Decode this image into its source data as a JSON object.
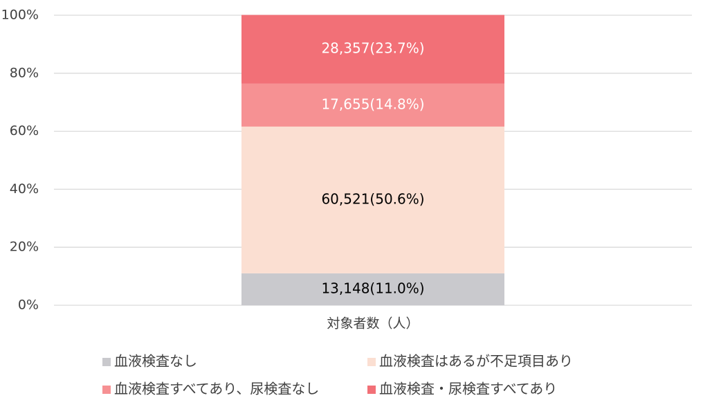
{
  "chart_data": {
    "type": "stacked_bar",
    "categories": [
      "対象者数（人）"
    ],
    "series": [
      {
        "name": "血液検査なし",
        "color": "#c9c9cd",
        "label_color": "#000000",
        "values": [
          11.0
        ],
        "value_labels": [
          "13,148(11.0%)"
        ]
      },
      {
        "name": "血液検査はあるが不足項目あり",
        "color": "#fbdfd2",
        "label_color": "#000000",
        "values": [
          50.6
        ],
        "value_labels": [
          "60,521(50.6%)"
        ]
      },
      {
        "name": "血液検査すべてあり、尿検査なし",
        "color": "#f69193",
        "label_color": "#ffffff",
        "values": [
          14.8
        ],
        "value_labels": [
          "17,655(14.8%)"
        ]
      },
      {
        "name": "血液検査・尿検査すべてあり",
        "color": "#f27077",
        "label_color": "#ffffff",
        "values": [
          23.7
        ],
        "value_labels": [
          "28,357(23.7%)"
        ]
      }
    ],
    "ylim": [
      0,
      100
    ],
    "yticks": [
      {
        "value": 0,
        "label": "0%"
      },
      {
        "value": 20,
        "label": "20%"
      },
      {
        "value": 40,
        "label": "40%"
      },
      {
        "value": 60,
        "label": "60%"
      },
      {
        "value": 80,
        "label": "80%"
      },
      {
        "value": 100,
        "label": "100%"
      }
    ],
    "grid": true,
    "legend": "bottom"
  }
}
